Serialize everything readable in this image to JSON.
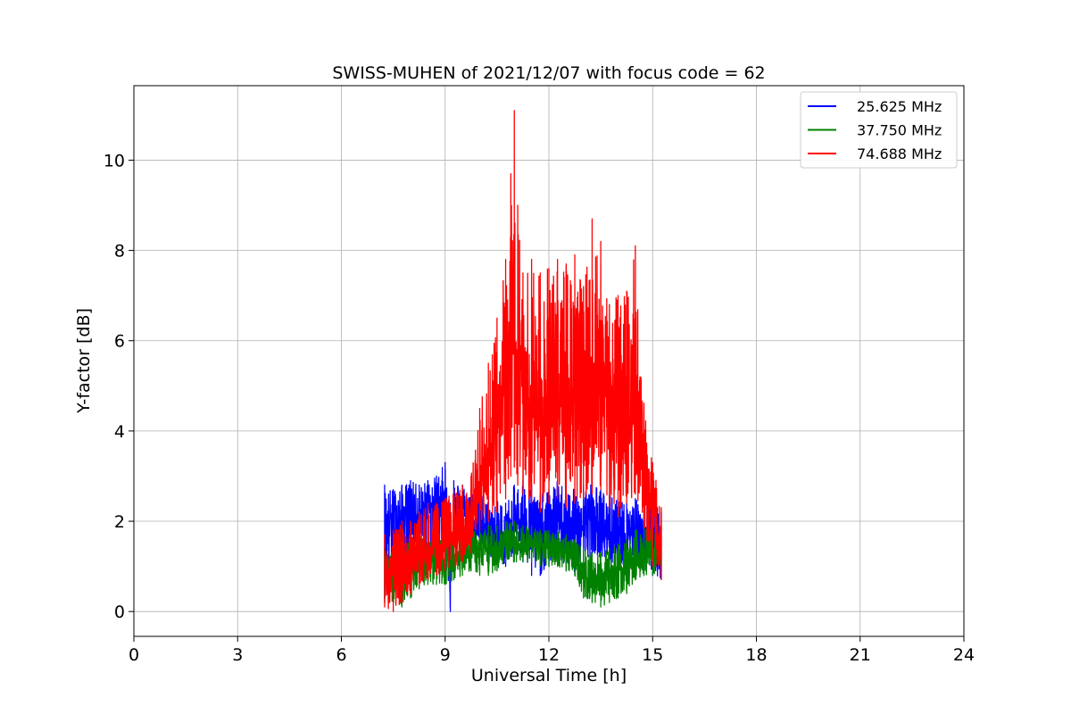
{
  "chart_data": {
    "type": "line",
    "title": "SWISS-MUHEN of 2021/12/07 with focus code = 62",
    "xlabel": "Universal Time [h]",
    "ylabel": "Y-factor [dB]",
    "xlim": [
      0,
      24
    ],
    "ylim": [
      -0.55,
      11.65
    ],
    "xticks": [
      0,
      3,
      6,
      9,
      12,
      15,
      18,
      21,
      24
    ],
    "yticks": [
      0,
      2,
      4,
      6,
      8,
      10
    ],
    "grid": true,
    "legend_position": "top-right",
    "series": [
      {
        "name": "25.625 MHz",
        "color": "#0000ff",
        "x": [
          7.25,
          7.5,
          7.75,
          8.0,
          8.25,
          8.5,
          8.75,
          9.0,
          9.15,
          9.25,
          9.5,
          9.75,
          10.0,
          10.25,
          10.5,
          10.75,
          11.0,
          11.25,
          11.5,
          11.75,
          12.0,
          12.25,
          12.5,
          12.75,
          13.0,
          13.25,
          13.5,
          13.75,
          14.0,
          14.25,
          14.5,
          14.75,
          15.0,
          15.25
        ],
        "y": [
          1.8,
          2.2,
          2.0,
          2.4,
          2.1,
          2.5,
          2.3,
          2.6,
          1.0,
          2.2,
          2.4,
          2.1,
          1.9,
          1.7,
          1.6,
          1.5,
          1.9,
          2.1,
          1.8,
          1.6,
          1.9,
          2.2,
          1.8,
          1.7,
          1.9,
          2.1,
          1.8,
          1.6,
          1.5,
          1.7,
          1.8,
          1.6,
          1.7,
          1.5
        ],
        "ymin": [
          0.3,
          0.6,
          0.8,
          1.0,
          1.1,
          1.2,
          1.1,
          1.0,
          0.0,
          1.2,
          1.4,
          1.5,
          1.4,
          1.2,
          1.1,
          1.0,
          1.3,
          1.1,
          0.8,
          0.8,
          1.0,
          1.2,
          0.9,
          0.8,
          1.1,
          1.3,
          1.2,
          1.0,
          0.9,
          1.1,
          1.2,
          0.9,
          0.8,
          0.7
        ],
        "ymax": [
          2.8,
          2.7,
          2.8,
          2.9,
          2.8,
          2.9,
          3.0,
          3.3,
          2.4,
          2.9,
          2.8,
          2.7,
          2.7,
          2.5,
          2.5,
          2.4,
          2.8,
          2.9,
          2.8,
          2.6,
          2.7,
          2.9,
          2.8,
          2.7,
          2.8,
          2.9,
          2.7,
          2.6,
          2.5,
          2.4,
          2.5,
          2.4,
          2.5,
          2.2
        ]
      },
      {
        "name": "37.750 MHz",
        "color": "#008000",
        "x": [
          7.25,
          7.5,
          7.75,
          8.0,
          8.25,
          8.5,
          8.75,
          9.0,
          9.25,
          9.5,
          9.75,
          10.0,
          10.25,
          10.5,
          10.75,
          11.0,
          11.25,
          11.5,
          11.75,
          12.0,
          12.25,
          12.5,
          12.75,
          13.0,
          13.25,
          13.5,
          13.75,
          14.0,
          14.25,
          14.5,
          14.75,
          15.0,
          15.25
        ],
        "y": [
          1.0,
          0.9,
          0.9,
          1.0,
          1.1,
          1.2,
          1.2,
          1.1,
          1.2,
          1.3,
          1.3,
          1.3,
          1.3,
          1.4,
          1.5,
          1.5,
          1.5,
          1.5,
          1.4,
          1.4,
          1.4,
          1.3,
          1.2,
          0.8,
          0.7,
          0.7,
          0.8,
          0.9,
          1.0,
          1.2,
          1.2,
          1.2,
          1.3
        ],
        "ymin": [
          0.2,
          0.2,
          0.1,
          0.3,
          0.5,
          0.6,
          0.6,
          0.6,
          0.7,
          0.8,
          0.9,
          0.8,
          0.8,
          0.9,
          1.1,
          1.1,
          1.1,
          1.1,
          1.0,
          1.0,
          1.0,
          0.9,
          0.8,
          0.3,
          0.2,
          0.1,
          0.2,
          0.3,
          0.4,
          0.7,
          0.8,
          0.8,
          0.9
        ],
        "ymax": [
          1.4,
          1.4,
          1.5,
          1.6,
          1.7,
          1.6,
          1.6,
          1.6,
          1.7,
          1.8,
          1.8,
          1.8,
          1.9,
          1.9,
          2.0,
          2.0,
          1.9,
          1.9,
          1.8,
          1.8,
          1.8,
          1.7,
          1.6,
          1.4,
          1.3,
          1.3,
          1.4,
          1.5,
          1.6,
          1.8,
          1.9,
          1.8,
          1.7
        ]
      },
      {
        "name": "74.688 MHz",
        "color": "#ff0000",
        "x": [
          7.25,
          7.5,
          7.75,
          8.0,
          8.25,
          8.5,
          8.75,
          9.0,
          9.25,
          9.5,
          9.75,
          10.0,
          10.25,
          10.5,
          10.75,
          10.9,
          11.0,
          11.1,
          11.25,
          11.5,
          11.75,
          12.0,
          12.25,
          12.5,
          12.75,
          13.0,
          13.25,
          13.5,
          13.75,
          14.0,
          14.25,
          14.5,
          14.75,
          15.0,
          15.25
        ],
        "y": [
          0.9,
          0.8,
          1.0,
          1.1,
          1.2,
          1.3,
          1.4,
          1.5,
          1.6,
          1.7,
          1.9,
          2.5,
          3.5,
          4.0,
          5.0,
          6.0,
          6.5,
          5.5,
          4.8,
          4.5,
          4.2,
          4.5,
          4.8,
          4.6,
          4.9,
          5.0,
          5.2,
          5.5,
          4.3,
          4.0,
          4.2,
          4.5,
          3.5,
          2.0,
          1.5
        ],
        "ymin": [
          0.1,
          0.0,
          0.2,
          0.4,
          0.6,
          0.7,
          0.8,
          0.9,
          1.0,
          1.1,
          1.3,
          1.8,
          2.0,
          2.2,
          2.5,
          3.0,
          3.2,
          2.8,
          2.6,
          2.4,
          2.2,
          2.4,
          2.5,
          2.3,
          2.4,
          2.5,
          2.6,
          2.7,
          2.3,
          2.1,
          2.4,
          2.6,
          1.9,
          1.0,
          0.7
        ],
        "ymax": [
          1.7,
          1.8,
          2.0,
          2.0,
          2.2,
          2.4,
          2.4,
          2.5,
          2.7,
          2.8,
          3.0,
          4.5,
          5.5,
          6.5,
          7.8,
          9.7,
          11.1,
          9.0,
          7.5,
          7.8,
          7.5,
          7.6,
          7.8,
          7.7,
          7.9,
          7.2,
          8.7,
          8.2,
          6.8,
          7.0,
          7.1,
          8.1,
          4.6,
          3.3,
          2.3
        ]
      }
    ]
  }
}
